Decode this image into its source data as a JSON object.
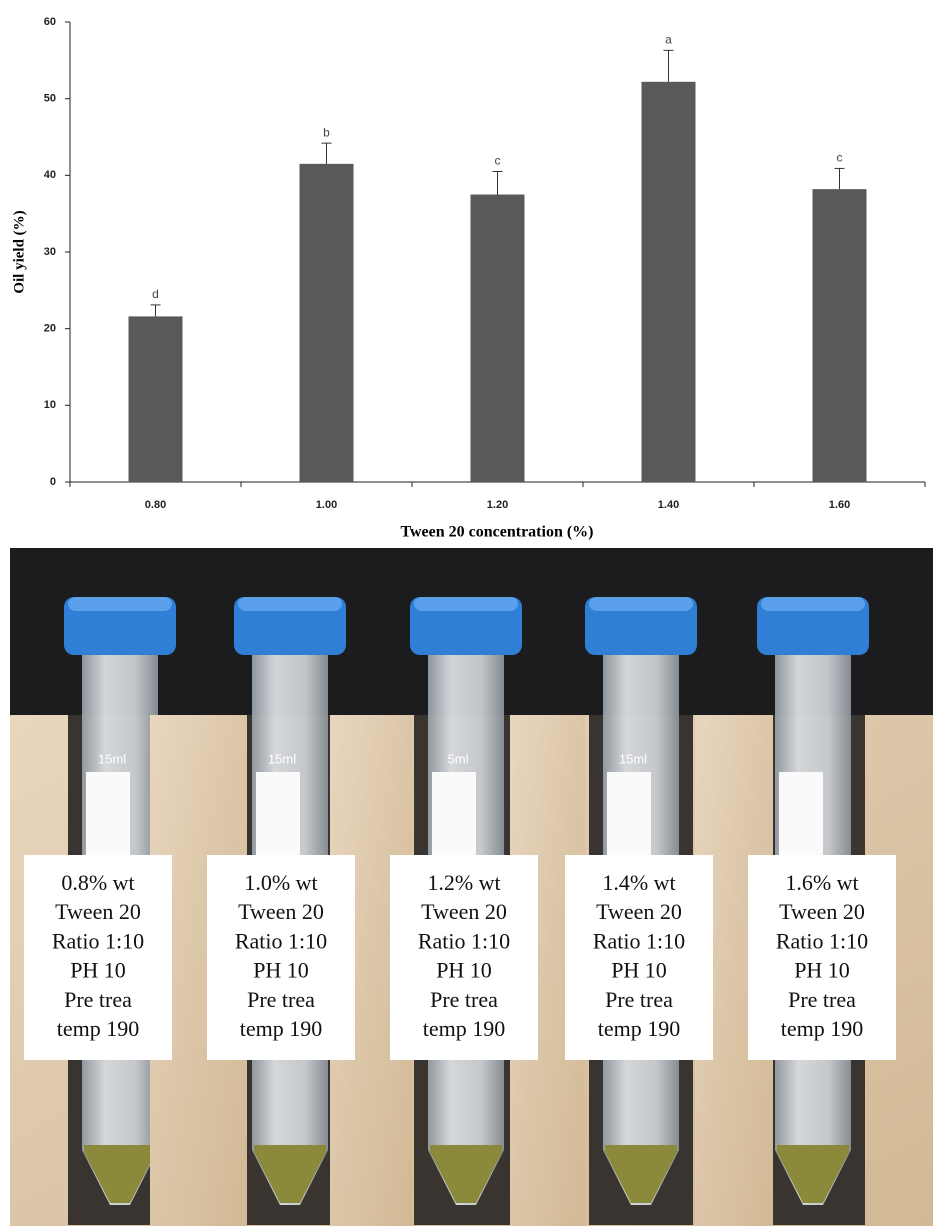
{
  "chart_data": {
    "type": "bar",
    "categories": [
      "0.80",
      "1.00",
      "1.20",
      "1.40",
      "1.60"
    ],
    "values": [
      21.6,
      41.5,
      37.5,
      52.2,
      38.2
    ],
    "errors": [
      1.5,
      2.7,
      3.0,
      4.1,
      2.7
    ],
    "annotations": [
      "d",
      "b",
      "c",
      "a",
      "c"
    ],
    "color": "#595959",
    "ylim": [
      0,
      60
    ],
    "yticks": [
      0,
      10,
      20,
      30,
      40,
      50,
      60
    ],
    "y_label": "Oil yield (%)",
    "x_label": "Tween 20 concentration (%)"
  },
  "photo": {
    "tube_marks": [
      "15ml",
      "15ml",
      "5ml",
      "15ml"
    ],
    "labels": [
      [
        "0.8% wt",
        "Tween 20",
        "Ratio 1:10",
        "PH 10",
        "Pre trea",
        "temp 190"
      ],
      [
        "1.0% wt",
        "Tween 20",
        "Ratio 1:10",
        "PH 10",
        "Pre trea",
        "temp 190"
      ],
      [
        "1.2% wt",
        "Tween 20",
        "Ratio 1:10",
        "PH 10",
        "Pre trea",
        "temp 190"
      ],
      [
        "1.4% wt",
        "Tween 20",
        "Ratio 1:10",
        "PH 10",
        "Pre trea",
        "temp 190"
      ],
      [
        "1.6% wt",
        "Tween 20",
        "Ratio 1:10",
        "PH 10",
        "Pre trea",
        "temp 190"
      ]
    ]
  }
}
